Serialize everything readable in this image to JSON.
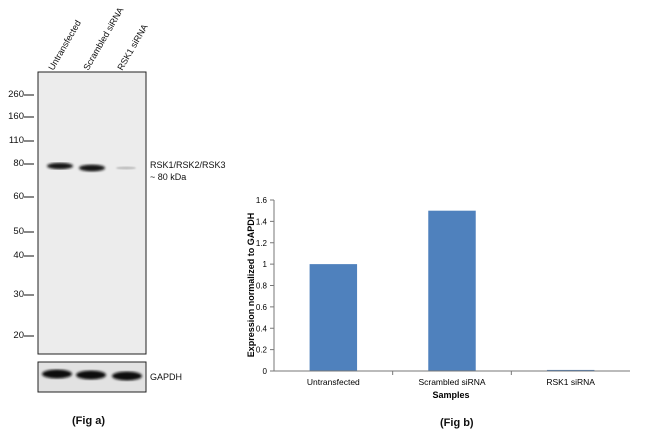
{
  "fig_a": {
    "lanes": [
      "Untransfected",
      "Scrambled siRNA",
      "RSK1 siRNA"
    ],
    "markers": [
      "260",
      "160",
      "110",
      "80",
      "60",
      "50",
      "40",
      "30",
      "20"
    ],
    "band_label_line1": "RSK1/RSK2/RSK3",
    "band_label_line2": "~ 80 kDa",
    "loading_label": "GAPDH",
    "caption": "(Fig a)"
  },
  "fig_b": {
    "caption": "(Fig b)"
  },
  "chart_data": {
    "type": "bar",
    "categories": [
      "Untransfected",
      "Scrambled siRNA",
      "RSK1 siRNA"
    ],
    "values": [
      1.0,
      1.5,
      0.01
    ],
    "xlabel": "Samples",
    "ylabel": "Expression  normalized to GAPDH",
    "ylim": [
      0,
      1.6
    ],
    "yticks": [
      "0",
      "0.2",
      "0.4",
      "0.6",
      "0.8",
      "1",
      "1.2",
      "1.4",
      "1.6"
    ],
    "bar_color": "#4f81bd",
    "grid": false
  }
}
